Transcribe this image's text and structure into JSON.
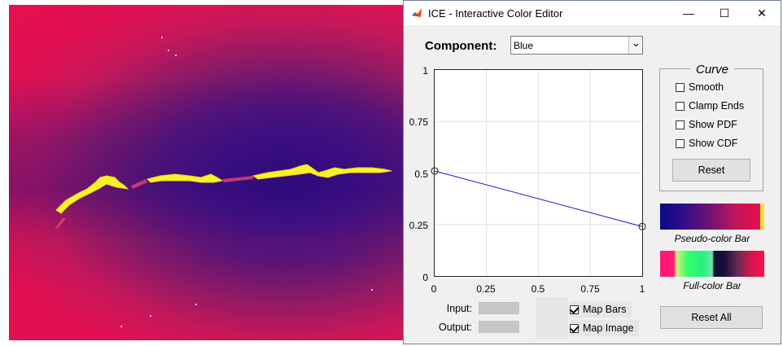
{
  "window": {
    "title": "ICE - Interactive Color Editor",
    "minimize_glyph": "—",
    "maximize_glyph": "☐",
    "close_glyph": "✕"
  },
  "component": {
    "label": "Component:",
    "selected": "Blue",
    "dropdown_glyph": "⌄"
  },
  "plot": {
    "y_ticks": [
      "1",
      "0.75",
      "0.5",
      "0.25",
      "0"
    ],
    "x_ticks": [
      "0",
      "0.25",
      "0.5",
      "0.75",
      "1"
    ],
    "curve_points": [
      [
        0,
        0.51
      ],
      [
        1,
        0.24
      ]
    ],
    "curve_color": "#1f1fd0",
    "grid": true
  },
  "curve": {
    "title": "Curve",
    "options": [
      {
        "label": "Smooth",
        "checked": false
      },
      {
        "label": "Clamp Ends",
        "checked": false
      },
      {
        "label": "Show PDF",
        "checked": false
      },
      {
        "label": "Show CDF",
        "checked": false
      }
    ],
    "reset_label": "Reset"
  },
  "bars": {
    "pseudo_label": "Pseudo-color Bar",
    "full_label": "Full-color Bar"
  },
  "io": {
    "input_label": "Input:",
    "output_label": "Output:"
  },
  "map": {
    "bars_label": "Map Bars",
    "bars_checked": true,
    "image_label": "Map Image",
    "image_checked": true
  },
  "reset_all_label": "Reset All"
}
